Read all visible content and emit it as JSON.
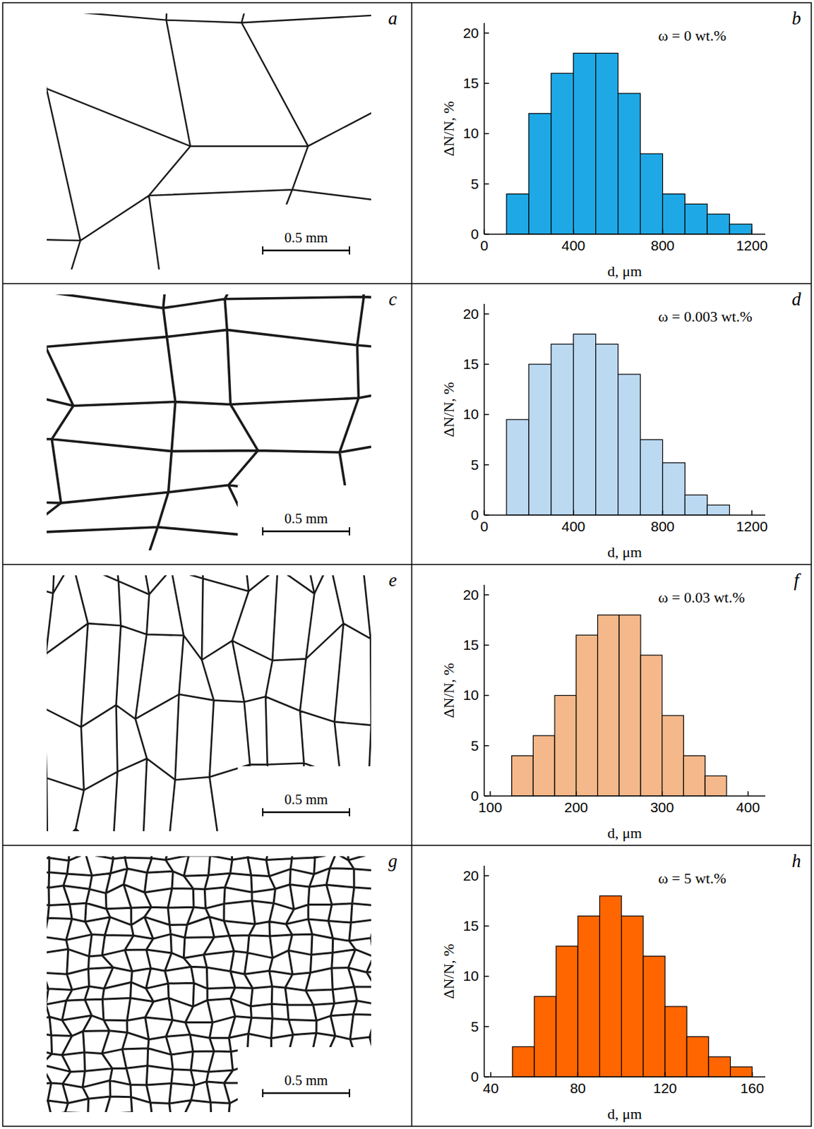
{
  "micrographs": [
    {
      "label": "a",
      "scale_bar": "0.5 mm"
    },
    {
      "label": "c",
      "scale_bar": "0.5 mm"
    },
    {
      "label": "e",
      "scale_bar": "0.5 mm"
    },
    {
      "label": "g",
      "scale_bar": "0.5 mm"
    }
  ],
  "chart_data": [
    {
      "type": "histogram",
      "label": "b",
      "annotation": "ω = 0 wt.%",
      "x_label": "d, μm",
      "y_label": "ΔN/N, %",
      "bins": [
        100,
        200,
        300,
        400,
        500,
        600,
        700,
        800,
        900,
        1000,
        1100,
        1200
      ],
      "values": [
        4,
        12,
        16,
        18,
        18,
        14,
        8,
        4,
        3,
        2,
        1
      ],
      "color": "#1ea9e6",
      "xlim": [
        0,
        1260
      ],
      "xticks": [
        0,
        400,
        800,
        1200
      ],
      "ylim": [
        0,
        21
      ],
      "yticks": [
        0,
        5,
        10,
        15,
        20
      ]
    },
    {
      "type": "histogram",
      "label": "d",
      "annotation": "ω = 0.003 wt.%",
      "x_label": "d, μm",
      "y_label": "ΔN/N, %",
      "bins": [
        100,
        200,
        300,
        400,
        500,
        600,
        700,
        800,
        900,
        1000,
        1100
      ],
      "values": [
        9.5,
        15,
        17,
        18,
        17,
        14,
        7.5,
        5.2,
        2,
        1
      ],
      "color": "#bcd9f2",
      "xlim": [
        0,
        1260
      ],
      "xticks": [
        0,
        400,
        800,
        1200
      ],
      "ylim": [
        0,
        21
      ],
      "yticks": [
        0,
        5,
        10,
        15,
        20
      ]
    },
    {
      "type": "histogram",
      "label": "f",
      "annotation": "ω = 0.03 wt.%",
      "x_label": "d, μm",
      "y_label": "ΔN/N, %",
      "bins": [
        125,
        150,
        175,
        200,
        225,
        250,
        275,
        300,
        325,
        350,
        375
      ],
      "values": [
        4,
        6,
        10,
        16,
        18,
        18,
        14,
        8,
        4,
        2
      ],
      "color": "#f5b88a",
      "xlim": [
        93,
        420
      ],
      "xticks": [
        100,
        200,
        300,
        400
      ],
      "ylim": [
        0,
        21
      ],
      "yticks": [
        0,
        5,
        10,
        15,
        20
      ]
    },
    {
      "type": "histogram",
      "label": "h",
      "annotation": "ω = 5 wt.%",
      "x_label": "d, μm",
      "y_label": "ΔN/N, %",
      "bins": [
        50,
        60,
        70,
        80,
        90,
        100,
        110,
        120,
        130,
        140,
        150,
        160
      ],
      "values": [
        3,
        8,
        13,
        16,
        18,
        16,
        12,
        7,
        4,
        2,
        1
      ],
      "color": "#ff6600",
      "xlim": [
        37,
        166
      ],
      "xticks": [
        40,
        80,
        120,
        160
      ],
      "ylim": [
        0,
        21
      ],
      "yticks": [
        0,
        5,
        10,
        15,
        20
      ]
    }
  ]
}
